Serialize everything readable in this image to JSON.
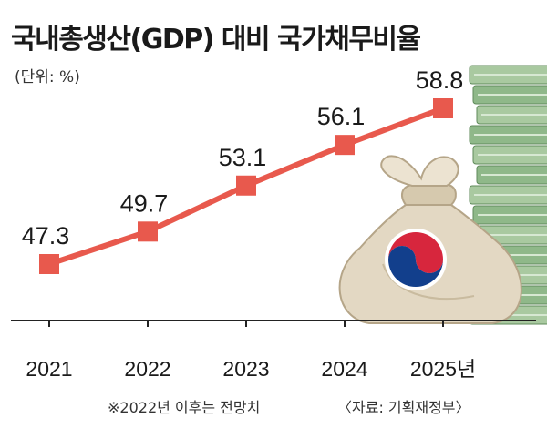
{
  "header": {
    "title": "국내총생산(GDP) 대비 국가채무비율",
    "unit": "(단위: %)"
  },
  "footer": {
    "note": "※2022년 이후는 전망치",
    "source": "〈자료: 기획재정부〉"
  },
  "colors": {
    "line": "#e8594d",
    "marker": "#e8594d",
    "axis": "#222222"
  },
  "chart_data": {
    "type": "line",
    "categories": [
      "2021",
      "2022",
      "2023",
      "2024",
      "2025년"
    ],
    "series": [
      {
        "values": [
          47.3,
          49.7,
          53.1,
          56.1,
          58.8
        ]
      }
    ],
    "value_labels": [
      "47.3",
      "49.7",
      "53.1",
      "56.1",
      "58.8"
    ],
    "grid": false,
    "legend": "none"
  }
}
